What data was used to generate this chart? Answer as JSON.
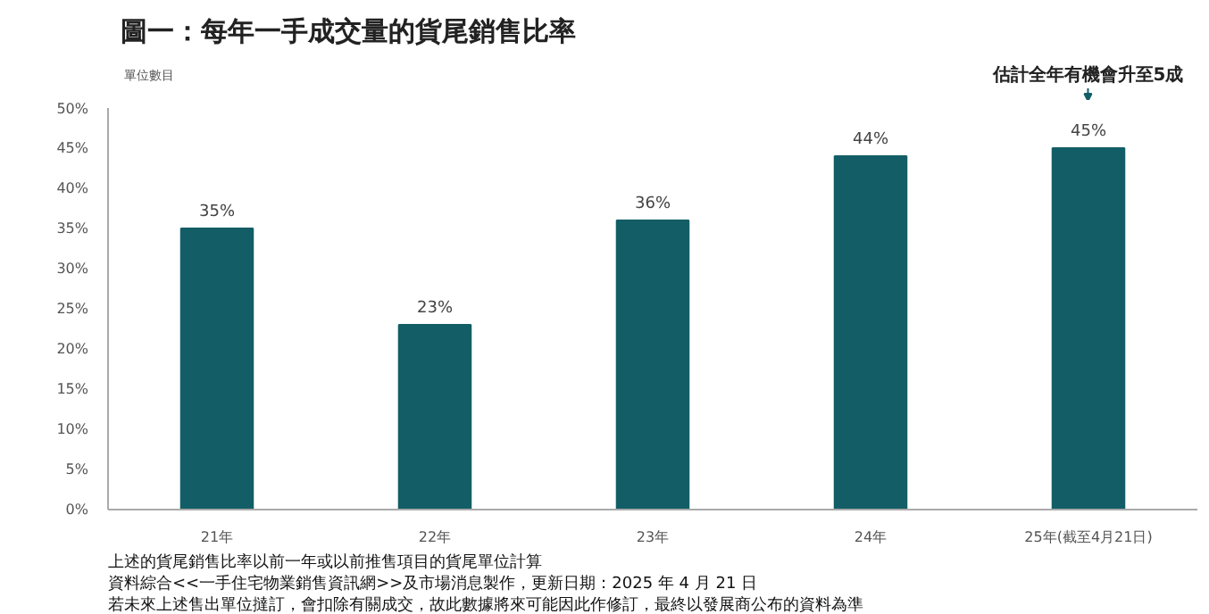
{
  "chart_data": {
    "type": "bar",
    "title": "圖一：每年一手成交量的貨尾銷售比率",
    "ylabel": "單位數目",
    "categories": [
      "21年",
      "22年",
      "23年",
      "24年",
      "25年(截至4月21日)"
    ],
    "values": [
      35,
      23,
      36,
      44,
      45
    ],
    "value_labels": [
      "35%",
      "23%",
      "36%",
      "44%",
      "45%"
    ],
    "color": "#135e66",
    "ylim": [
      0,
      50
    ],
    "yticks": [
      {
        "value": 0,
        "label": "0%"
      },
      {
        "value": 5,
        "label": "5%"
      },
      {
        "value": 10,
        "label": "10%"
      },
      {
        "value": 15,
        "label": "15%"
      },
      {
        "value": 20,
        "label": "20%"
      },
      {
        "value": 25,
        "label": "25%"
      },
      {
        "value": 30,
        "label": "30%"
      },
      {
        "value": 35,
        "label": "35%"
      },
      {
        "value": 40,
        "label": "40%"
      },
      {
        "value": 45,
        "label": "45%"
      },
      {
        "value": 50,
        "label": "50%"
      }
    ],
    "grid": false,
    "annotations": [
      "估計全年有機會升至5成",
      "上述的貨尾銷售比率以前一年或以前推售項目的貨尾單位計算",
      "資料綜合<<一手住宅物業銷售資訊網>>及市場消息製作，更新日期：2025 年 4 月 21 日",
      "若未來上述售出單位撻訂，會扣除有關成交，故此數據將來可能因此作修訂，最終以發展商公布的資料為準"
    ]
  }
}
